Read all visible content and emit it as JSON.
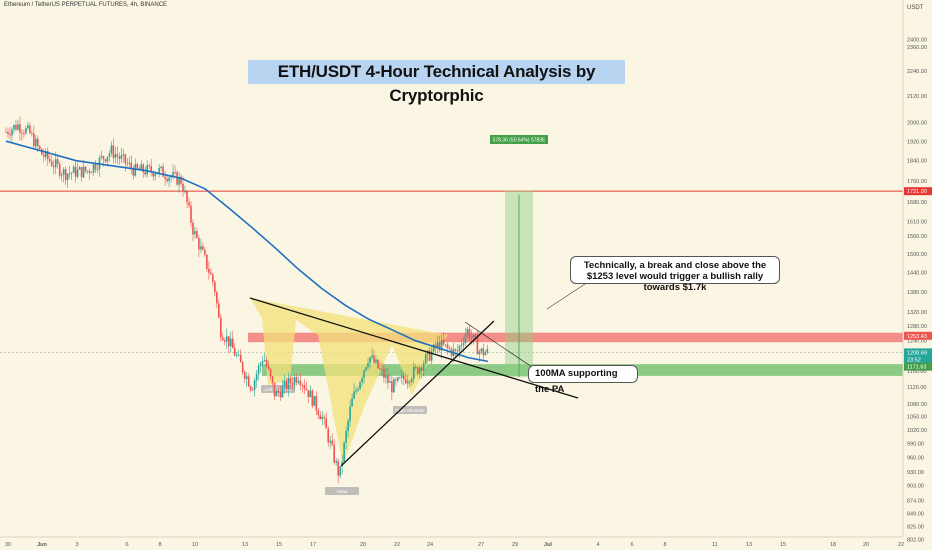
{
  "header": "Ethereum / TetherUS PERPETUAL FUTURES, 4h, BINANCE",
  "chart_data": {
    "type": "candlestick",
    "title": "ETH/USDT 4-Hour Technical Analysis by Cryptorphic",
    "y_axis": {
      "unit_label": "USDT",
      "scale": "log",
      "ylim": [
        810,
        2560
      ],
      "ticks": [
        "2400.00",
        "2360.00",
        "2240.00",
        "2120.00",
        "2000.00",
        "1920.00",
        "1840.00",
        "1760.00",
        "1680.00",
        "1610.00",
        "1560.00",
        "1500.00",
        "1440.00",
        "1380.00",
        "1320.00",
        "1280.00",
        "1240.00",
        "1200.00",
        "1160.00",
        "1120.00",
        "1080.00",
        "1050.00",
        "1020.00",
        "990.00",
        "960.00",
        "930.00",
        "903.00",
        "874.00",
        "849.00",
        "825.00",
        "802.00"
      ]
    },
    "x_axis": {
      "ticks": [
        "30",
        "Jun",
        "3",
        "6",
        "8",
        "10",
        "13",
        "15",
        "17",
        "20",
        "22",
        "24",
        "27",
        "29",
        "Jul",
        "4",
        "6",
        "8",
        "11",
        "13",
        "15",
        "18",
        "20",
        "22"
      ]
    },
    "price_labels": [
      {
        "text": "1721.00",
        "value": 1721,
        "color": "#e53935"
      },
      {
        "text": "1253.43",
        "value": 1253.43,
        "color": "#ef5350"
      },
      {
        "text": "1208.69",
        "value": 1208.69,
        "color": "#26a69a"
      },
      {
        "text": "23:52",
        "value": 1190,
        "color": "#26a69a"
      },
      {
        "text": "1171.72",
        "value": 1171.72,
        "color": "#2962ff"
      },
      {
        "text": "1171.63",
        "value": 1171.63,
        "color": "#43a047"
      }
    ],
    "levels": {
      "target": 1721,
      "resistance_zone": [
        1236,
        1262
      ],
      "support_zone": [
        1148,
        1178
      ]
    },
    "projection": {
      "label": "578.36 (50.64%) 5783E",
      "from": 1145,
      "to": 1723
    },
    "pattern_labels": [
      "Left Shoulder",
      "Head",
      "Right Shoulder"
    ],
    "annotations": [
      "Technically, a break and close above the $1253 level would trigger a bullish rally towards $1.7k",
      "100MA supporting the PA"
    ],
    "key_prices": [
      {
        "day": 0,
        "price": 1960
      },
      {
        "day": 1,
        "price": 1990
      },
      {
        "day": 2,
        "price": 1955
      },
      {
        "day": 3,
        "price": 1870
      },
      {
        "day": 5,
        "price": 1790
      },
      {
        "day": 7,
        "price": 1800
      },
      {
        "day": 9,
        "price": 1880
      },
      {
        "day": 11,
        "price": 1800
      },
      {
        "day": 13,
        "price": 1800
      },
      {
        "day": 15,
        "price": 1760
      },
      {
        "day": 16,
        "price": 1580
      },
      {
        "day": 17,
        "price": 1480
      },
      {
        "day": 17.8,
        "price": 1400
      },
      {
        "day": 18.3,
        "price": 1270
      },
      {
        "day": 19,
        "price": 1240
      },
      {
        "day": 20,
        "price": 1180
      },
      {
        "day": 21,
        "price": 1120
      },
      {
        "day": 22,
        "price": 1200
      },
      {
        "day": 23,
        "price": 1100
      },
      {
        "day": 25,
        "price": 1150
      },
      {
        "day": 27,
        "price": 1050
      },
      {
        "day": 28.5,
        "price": 920
      },
      {
        "day": 29.5,
        "price": 1080
      },
      {
        "day": 31,
        "price": 1200
      },
      {
        "day": 33,
        "price": 1120
      },
      {
        "day": 35,
        "price": 1160
      },
      {
        "day": 37,
        "price": 1230
      },
      {
        "day": 38.5,
        "price": 1205
      },
      {
        "day": 39.4,
        "price": 1270
      },
      {
        "day": 40.5,
        "price": 1210
      },
      {
        "day": 41.2,
        "price": 1208
      }
    ]
  }
}
